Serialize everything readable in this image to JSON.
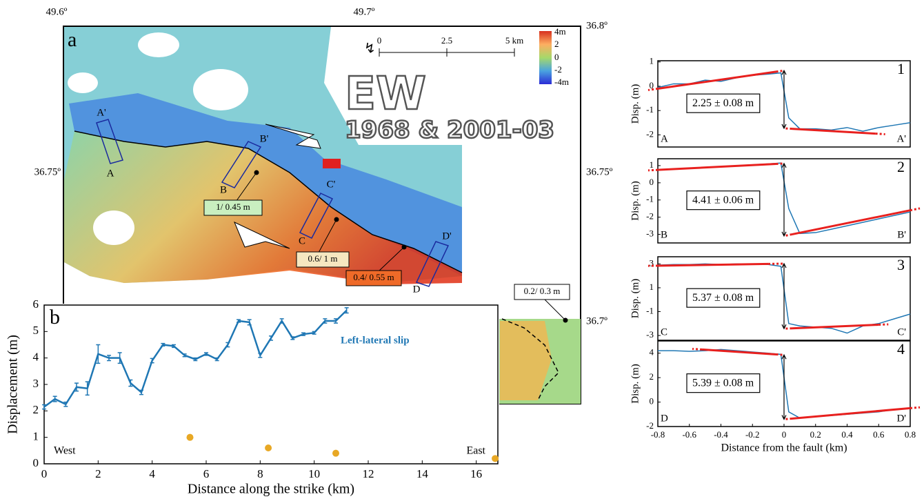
{
  "map": {
    "panel": "a",
    "title": "EW",
    "subtitle": "1968 & 2001-03",
    "lon_labels": [
      "49.6º",
      "49.7º"
    ],
    "lat_labels": [
      "36.8º",
      "36.75º",
      "36.75º",
      "36.7º"
    ],
    "scale_labels": [
      "0",
      "2.5",
      "5 km"
    ],
    "colorbar_labels": [
      "4m",
      "2",
      "0",
      "-2",
      "-4m"
    ],
    "profile_labels": [
      "A'",
      "A",
      "B'",
      "B",
      "C'",
      "C",
      "D'",
      "D"
    ],
    "slip_labels": [
      "1/ 0.45 m",
      "0.6/ 1 m",
      "0.4/ 0.55 m",
      "0.2/ 0.3 m"
    ]
  },
  "chart_data": [
    {
      "type": "line",
      "panel_label": "b",
      "xlabel": "Distance along the strike (km)",
      "ylabel": "Displacement (m)",
      "xlim": [
        0,
        16.8
      ],
      "ylim": [
        0,
        6
      ],
      "xticks": [
        0,
        2,
        4,
        6,
        8,
        10,
        12,
        14,
        16
      ],
      "yticks": [
        0,
        1,
        2,
        3,
        4,
        5,
        6
      ],
      "series": [
        {
          "name": "Left-lateral slip",
          "color": "#1f77b4",
          "x": [
            0,
            0.4,
            0.8,
            1.2,
            1.6,
            2.0,
            2.4,
            2.8,
            3.2,
            3.6,
            4.0,
            4.4,
            4.8,
            5.2,
            5.6,
            6.0,
            6.4,
            6.8,
            7.2,
            7.6,
            8.0,
            8.4,
            8.8,
            9.2,
            9.6,
            10.0,
            10.4,
            10.8,
            11.2
          ],
          "values": [
            2.15,
            2.45,
            2.25,
            2.9,
            2.85,
            4.15,
            4.0,
            4.0,
            3.05,
            2.7,
            3.9,
            4.5,
            4.45,
            4.1,
            3.95,
            4.15,
            3.95,
            4.5,
            5.4,
            5.35,
            4.1,
            4.75,
            5.4,
            4.75,
            4.9,
            4.95,
            5.4,
            5.4,
            5.8
          ],
          "errors": [
            0.08,
            0.1,
            0.08,
            0.15,
            0.25,
            0.35,
            0.1,
            0.2,
            0.12,
            0.08,
            0.08,
            0.05,
            0.05,
            0.05,
            0.05,
            0.05,
            0.05,
            0.08,
            0.05,
            0.1,
            0.08,
            0.08,
            0.08,
            0.05,
            0.05,
            0.05,
            0.08,
            0.08,
            0.1
          ]
        }
      ],
      "points": {
        "color": "#e8a825",
        "x": [
          5.4,
          8.3,
          10.8,
          16.7
        ],
        "values": [
          1.0,
          0.6,
          0.4,
          0.2
        ]
      },
      "annotations": [
        "West",
        "East"
      ]
    },
    {
      "type": "profile",
      "panel_label": "1",
      "ylabel": "Disp. (m)",
      "start_label": "A",
      "end_label": "A'",
      "offset_label": "2.25 ± 0.08 m",
      "xlim": [
        -0.8,
        0.8
      ],
      "ylim": [
        -2.5,
        1.05
      ],
      "yticks": [
        -2,
        -1,
        0,
        1
      ],
      "profile": {
        "color": "#1f77b4",
        "x": [
          -0.8,
          -0.7,
          -0.6,
          -0.5,
          -0.4,
          -0.3,
          -0.2,
          -0.1,
          -0.02,
          0.03,
          0.1,
          0.2,
          0.3,
          0.4,
          0.5,
          0.6,
          0.7,
          0.8
        ],
        "values": [
          -0.05,
          0.1,
          0.1,
          0.25,
          0.2,
          0.35,
          0.45,
          0.5,
          0.55,
          -1.3,
          -1.75,
          -1.75,
          -1.8,
          -1.7,
          -1.85,
          -1.7,
          -1.6,
          -1.5
        ]
      },
      "fits": [
        {
          "color": "#e8201e",
          "x": [
            -0.8,
            -0.05
          ],
          "values": [
            -0.1,
            0.6
          ]
        },
        {
          "color": "#e8201e",
          "x": [
            0.05,
            0.58
          ],
          "values": [
            -1.75,
            -1.95
          ]
        }
      ]
    },
    {
      "type": "profile",
      "panel_label": "2",
      "ylabel": "Disp. (m)",
      "start_label": "B",
      "end_label": "B'",
      "offset_label": "4.41 ± 0.06 m",
      "xlim": [
        -0.8,
        0.8
      ],
      "ylim": [
        -3.5,
        1.4
      ],
      "yticks": [
        -3,
        -2,
        -1,
        0,
        1
      ],
      "profile": {
        "color": "#1f77b4",
        "x": [
          -0.8,
          -0.7,
          -0.6,
          -0.5,
          -0.4,
          -0.3,
          -0.2,
          -0.1,
          -0.02,
          0.03,
          0.1,
          0.2,
          0.3,
          0.4,
          0.5,
          0.6,
          0.7,
          0.8
        ],
        "values": [
          0.75,
          0.8,
          0.85,
          0.9,
          0.95,
          1.0,
          1.05,
          1.1,
          1.15,
          -1.5,
          -2.95,
          -2.9,
          -2.7,
          -2.5,
          -2.3,
          -2.1,
          -1.9,
          -1.7
        ]
      },
      "fits": [
        {
          "color": "#e8201e",
          "x": [
            -0.8,
            -0.05
          ],
          "values": [
            0.75,
            1.1
          ]
        },
        {
          "color": "#e8201e",
          "x": [
            0.05,
            0.8
          ],
          "values": [
            -3.0,
            -1.6
          ]
        }
      ]
    },
    {
      "type": "profile",
      "panel_label": "3",
      "ylabel": "Disp. (m)",
      "start_label": "C",
      "end_label": "C'",
      "offset_label": "5.37 ± 0.08 m",
      "xlim": [
        -0.8,
        0.8
      ],
      "ylim": [
        -3.4,
        3.6
      ],
      "yticks": [
        -3,
        -1,
        1,
        3
      ],
      "profile": {
        "color": "#1f77b4",
        "x": [
          -0.8,
          -0.7,
          -0.6,
          -0.5,
          -0.4,
          -0.3,
          -0.2,
          -0.1,
          -0.02,
          0.03,
          0.1,
          0.2,
          0.3,
          0.4,
          0.5,
          0.6,
          0.7,
          0.8
        ],
        "values": [
          2.9,
          2.95,
          2.95,
          3.0,
          2.95,
          3.0,
          3.0,
          2.95,
          2.8,
          -2.0,
          -2.2,
          -2.3,
          -2.4,
          -2.8,
          -2.2,
          -2.0,
          -1.6,
          -1.2
        ]
      },
      "fits": [
        {
          "color": "#e8201e",
          "x": [
            -0.8,
            -0.1
          ],
          "values": [
            2.85,
            3.0
          ]
        },
        {
          "color": "#e8201e",
          "x": [
            0.05,
            0.6
          ],
          "values": [
            -2.4,
            -2.1
          ]
        }
      ]
    },
    {
      "type": "profile",
      "panel_label": "4",
      "ylabel": "Disp. (m)",
      "start_label": "D",
      "end_label": "D'",
      "offset_label": "5.39 ± 0.08 m",
      "xlabel": "Distance from the fault (km)",
      "xlim": [
        -0.8,
        0.8
      ],
      "ylim": [
        -2,
        5
      ],
      "yticks": [
        -2,
        0,
        2,
        4
      ],
      "xticks": [
        -0.8,
        -0.6,
        -0.4,
        -0.2,
        0,
        0.2,
        0.4,
        0.6,
        0.8
      ],
      "profile": {
        "color": "#1f77b4",
        "x": [
          -0.8,
          -0.7,
          -0.6,
          -0.5,
          -0.4,
          -0.3,
          -0.2,
          -0.1,
          -0.02,
          0.03,
          0.1,
          0.2,
          0.3,
          0.4,
          0.5,
          0.6,
          0.7,
          0.8
        ],
        "values": [
          4.2,
          4.2,
          4.15,
          4.2,
          4.3,
          4.2,
          4.1,
          4.0,
          3.9,
          -0.8,
          -1.3,
          -1.2,
          -1.1,
          -1.0,
          -0.9,
          -0.8,
          -0.6,
          -0.5
        ]
      },
      "fits": [
        {
          "color": "#e8201e",
          "x": [
            -0.52,
            -0.05
          ],
          "values": [
            4.3,
            3.9
          ]
        },
        {
          "color": "#e8201e",
          "x": [
            0.05,
            0.8
          ],
          "values": [
            -1.35,
            -0.5
          ]
        }
      ]
    }
  ]
}
